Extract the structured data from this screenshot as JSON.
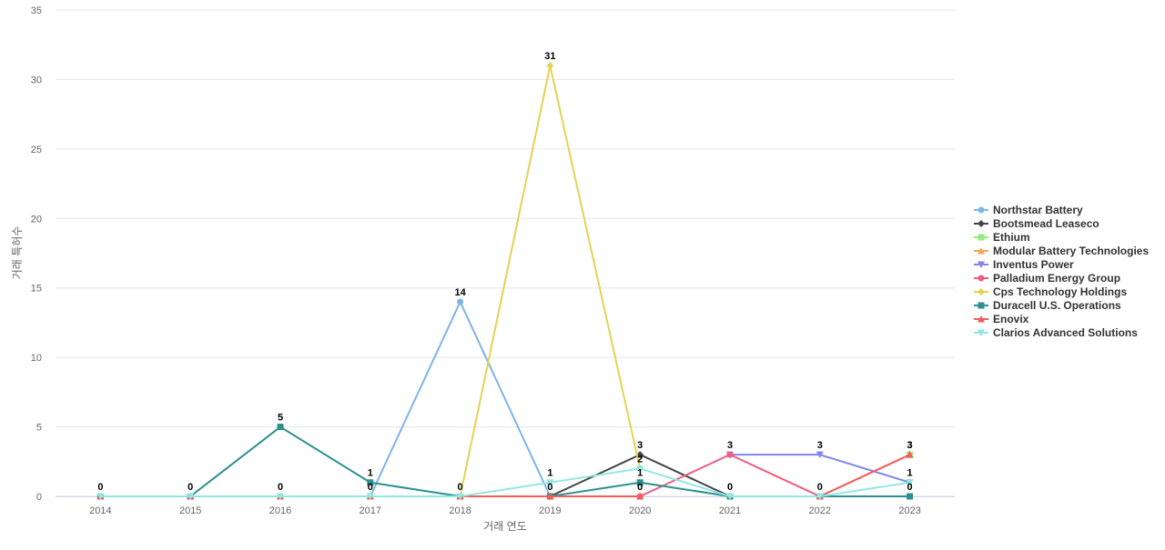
{
  "chart_data": {
    "type": "line",
    "title": "",
    "xlabel": "거래 연도",
    "ylabel": "거래 특허수",
    "ylim": [
      0,
      35
    ],
    "yticks": [
      0,
      5,
      10,
      15,
      20,
      25,
      30,
      35
    ],
    "grid": true,
    "legend_position": "right",
    "categories": [
      "2014",
      "2015",
      "2016",
      "2017",
      "2018",
      "2019",
      "2020",
      "2021",
      "2022",
      "2023"
    ],
    "series": [
      {
        "name": "Northstar Battery",
        "color": "#7cb5ec",
        "marker": "circle",
        "values": [
          0,
          0,
          0,
          0,
          14,
          0,
          null,
          null,
          null,
          null
        ],
        "labels": [
          null,
          null,
          null,
          null,
          14,
          null,
          null,
          null,
          null,
          null
        ]
      },
      {
        "name": "Bootsmead Leaseco",
        "color": "#434348",
        "marker": "diamond",
        "values": [
          null,
          null,
          null,
          null,
          null,
          0,
          3,
          0,
          null,
          null
        ],
        "labels": [
          null,
          null,
          null,
          null,
          null,
          null,
          3,
          null,
          null,
          null
        ]
      },
      {
        "name": "Ethium",
        "color": "#90ed7d",
        "marker": "square",
        "values": [
          null,
          null,
          null,
          null,
          null,
          null,
          null,
          null,
          null,
          3
        ],
        "labels": [
          null,
          null,
          null,
          null,
          null,
          null,
          null,
          null,
          null,
          3
        ]
      },
      {
        "name": "Modular Battery Technologies",
        "color": "#f7a35c",
        "marker": "triangle",
        "values": [
          0,
          0,
          0,
          0,
          null,
          null,
          null,
          null,
          0,
          3
        ],
        "labels": [
          null,
          null,
          null,
          null,
          null,
          null,
          null,
          null,
          null,
          null
        ]
      },
      {
        "name": "Inventus Power",
        "color": "#8085e9",
        "marker": "triangle-down",
        "values": [
          null,
          null,
          null,
          null,
          null,
          null,
          null,
          3,
          3,
          1
        ],
        "labels": [
          null,
          null,
          null,
          null,
          null,
          null,
          null,
          null,
          3,
          1
        ]
      },
      {
        "name": "Palladium Energy Group",
        "color": "#f15c80",
        "marker": "circle",
        "values": [
          null,
          null,
          null,
          null,
          null,
          null,
          0,
          3,
          0,
          null
        ],
        "labels": [
          null,
          null,
          null,
          null,
          null,
          null,
          0,
          3,
          0,
          null
        ]
      },
      {
        "name": "Cps Technology Holdings",
        "color": "#e4d354",
        "marker": "diamond",
        "values": [
          null,
          null,
          null,
          null,
          0,
          31,
          2,
          null,
          null,
          null
        ],
        "labels": [
          null,
          null,
          null,
          null,
          0,
          31,
          2,
          null,
          null,
          null
        ]
      },
      {
        "name": "Duracell U.S. Operations",
        "color": "#2b908f",
        "marker": "square",
        "values": [
          0,
          0,
          5,
          1,
          0,
          0,
          1,
          0,
          0,
          0
        ],
        "labels": [
          0,
          0,
          5,
          1,
          null,
          0,
          1,
          0,
          null,
          0
        ]
      },
      {
        "name": "Enovix",
        "color": "#f45b5b",
        "marker": "triangle",
        "values": [
          0,
          0,
          0,
          0,
          0,
          0,
          0,
          null,
          0,
          3
        ],
        "labels": [
          null,
          null,
          0,
          0,
          null,
          null,
          null,
          null,
          null,
          3
        ]
      },
      {
        "name": "Clarios Advanced Solutions",
        "color": "#91e8e1",
        "marker": "triangle-down",
        "values": [
          0,
          0,
          0,
          0,
          0,
          1,
          2,
          0,
          0,
          1
        ],
        "labels": [
          null,
          null,
          null,
          null,
          null,
          1,
          null,
          null,
          null,
          null
        ]
      }
    ]
  }
}
